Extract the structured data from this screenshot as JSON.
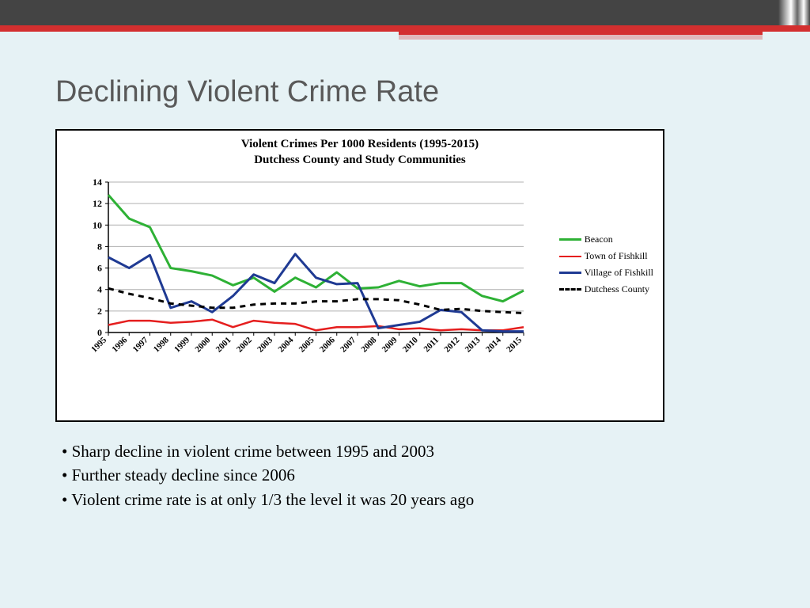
{
  "slide": {
    "title": "Declining Violent Crime Rate",
    "background_color": "#e6f2f5",
    "topbar_color": "#444444",
    "accent_color": "#d32f2f"
  },
  "chart": {
    "type": "line",
    "title_line1": "Violent Crimes Per 1000 Residents (1995-2015)",
    "title_line2": "Dutchess County and Study Communities",
    "title_fontsize": 15,
    "background_color": "#ffffff",
    "border_color": "#000000",
    "grid_color": "#b0b0b0",
    "axis_color": "#000000",
    "ylim": [
      0,
      14
    ],
    "ytick_step": 2,
    "yticks": [
      0,
      2,
      4,
      6,
      8,
      10,
      12,
      14
    ],
    "xlabels": [
      "1995",
      "1996",
      "1997",
      "1998",
      "1999",
      "2000",
      "2001",
      "2002",
      "2003",
      "2004",
      "2005",
      "2006",
      "2007",
      "2008",
      "2009",
      "2010",
      "2011",
      "2012",
      "2013",
      "2014",
      "2015"
    ],
    "xlabel_rotation": -45,
    "tick_fontsize": 12,
    "series": [
      {
        "name": "Beacon",
        "color": "#2eb135",
        "width": 3,
        "dash": "none",
        "values": [
          12.8,
          10.6,
          9.8,
          6.0,
          5.7,
          5.3,
          4.4,
          5.1,
          3.8,
          5.1,
          4.2,
          5.6,
          4.1,
          4.2,
          4.8,
          4.3,
          4.6,
          4.6,
          3.4,
          2.9,
          3.9
        ]
      },
      {
        "name": "Town of Fishkill",
        "color": "#e51e1e",
        "width": 2.5,
        "dash": "none",
        "values": [
          0.7,
          1.1,
          1.1,
          0.9,
          1.0,
          1.2,
          0.5,
          1.1,
          0.9,
          0.8,
          0.2,
          0.5,
          0.5,
          0.6,
          0.3,
          0.4,
          0.2,
          0.3,
          0.2,
          0.2,
          0.5
        ]
      },
      {
        "name": "Village of Fishkill",
        "color": "#1f3a93",
        "width": 3,
        "dash": "none",
        "values": [
          7.0,
          6.0,
          7.2,
          2.3,
          2.9,
          1.9,
          3.4,
          5.4,
          4.6,
          7.3,
          5.1,
          4.5,
          4.6,
          0.4,
          0.7,
          1.0,
          2.1,
          1.9,
          0.2,
          0.1,
          0.1
        ]
      },
      {
        "name": "Dutchess County",
        "color": "#000000",
        "width": 3,
        "dash": "7,6",
        "values": [
          4.1,
          3.6,
          3.2,
          2.7,
          2.5,
          2.3,
          2.3,
          2.6,
          2.7,
          2.7,
          2.9,
          2.9,
          3.1,
          3.1,
          3.0,
          2.6,
          2.1,
          2.2,
          2.0,
          1.9,
          1.8
        ]
      }
    ],
    "legend_fontsize": 12
  },
  "bullets": {
    "fontsize": 21,
    "items": [
      "Sharp decline in violent crime between 1995 and 2003",
      "Further steady decline since 2006",
      "Violent crime rate is at only 1/3 the level it was 20 years ago"
    ]
  }
}
